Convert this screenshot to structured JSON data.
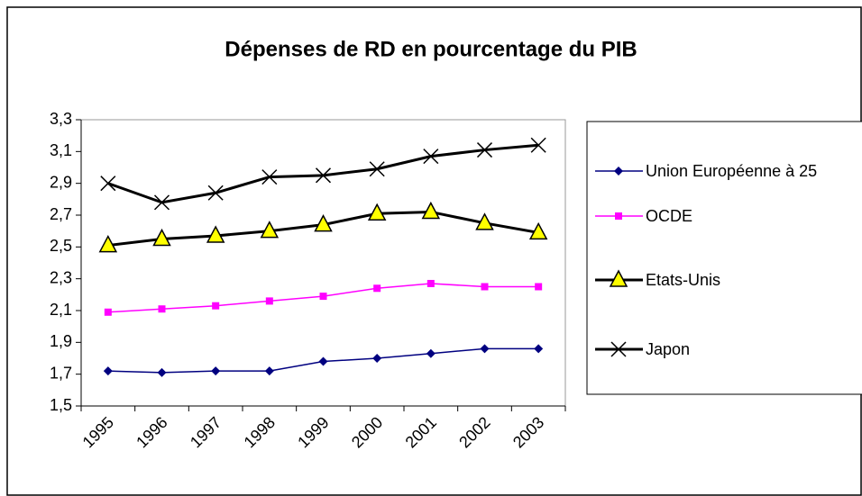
{
  "chart_data": {
    "type": "line",
    "title": "Dépenses de RD en pourcentage du PIB",
    "categories": [
      "1995",
      "1996",
      "1997",
      "1998",
      "1999",
      "2000",
      "2001",
      "2002",
      "2003"
    ],
    "series": [
      {
        "name": "Union Européenne à 25",
        "color": "#000080",
        "marker": "diamond",
        "values": [
          1.72,
          1.71,
          1.72,
          1.72,
          1.78,
          1.8,
          1.83,
          1.86,
          1.86
        ]
      },
      {
        "name": "OCDE",
        "color": "#ff00ff",
        "marker": "square",
        "values": [
          2.09,
          2.11,
          2.13,
          2.16,
          2.19,
          2.24,
          2.27,
          2.25,
          2.25
        ]
      },
      {
        "name": "Etats-Unis",
        "color": "#000000",
        "marker": "triangle",
        "values": [
          2.51,
          2.55,
          2.57,
          2.6,
          2.64,
          2.71,
          2.72,
          2.65,
          2.59
        ]
      },
      {
        "name": "Japon",
        "color": "#000000",
        "marker": "x",
        "values": [
          2.9,
          2.78,
          2.84,
          2.94,
          2.95,
          2.99,
          3.07,
          3.11,
          3.14
        ]
      }
    ],
    "ylim": [
      1.5,
      3.3
    ],
    "yticks": [
      {
        "value": 1.5,
        "label": "1,5"
      },
      {
        "value": 1.7,
        "label": "1,7"
      },
      {
        "value": 1.9,
        "label": "1,9"
      },
      {
        "value": 2.1,
        "label": "2,1"
      },
      {
        "value": 2.3,
        "label": "2,3"
      },
      {
        "value": 2.5,
        "label": "2,5"
      },
      {
        "value": 2.7,
        "label": "2,7"
      },
      {
        "value": 2.9,
        "label": "2,9"
      },
      {
        "value": 3.1,
        "label": "3,1"
      },
      {
        "value": 3.3,
        "label": "3,3"
      }
    ],
    "grid": false,
    "legend": "right"
  }
}
